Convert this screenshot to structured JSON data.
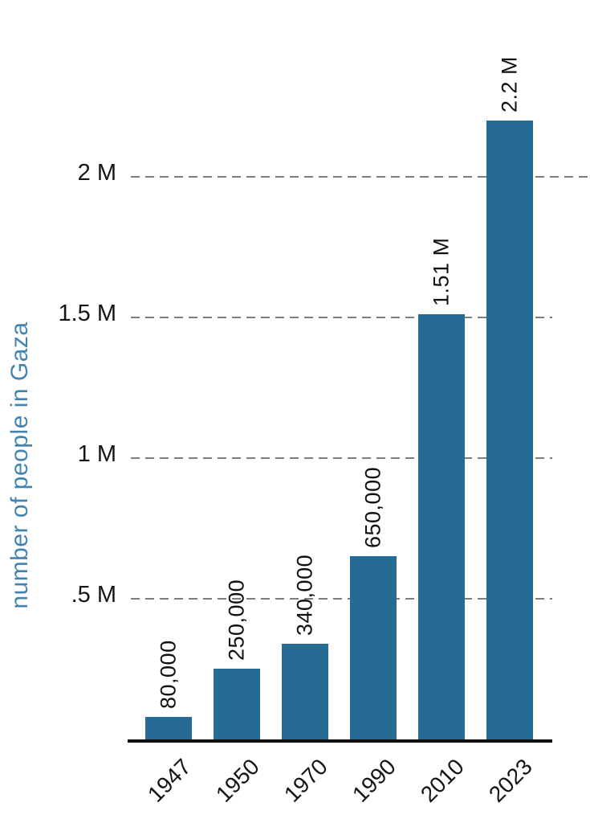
{
  "chart_data": {
    "type": "bar",
    "title": "",
    "xlabel": "",
    "ylabel": "number of people in Gaza",
    "categories": [
      "1947",
      "1950",
      "1970",
      "1990",
      "2010",
      "2023"
    ],
    "values": [
      80000,
      250000,
      340000,
      650000,
      1510000,
      2200000
    ],
    "value_labels": [
      "80,000",
      "250,000",
      "340,000",
      "650,000",
      "1.51 M",
      "2.2 M"
    ],
    "y_axis": {
      "ticks": [
        {
          "label": ".5 M",
          "value": 500000
        },
        {
          "label": "1 M",
          "value": 1000000
        },
        {
          "label": "1.5 M",
          "value": 1500000
        },
        {
          "label": "2 M",
          "value": 2000000
        }
      ],
      "ylim": [
        0,
        2300000
      ],
      "gridline_style": "dashed"
    },
    "legend": "none",
    "colors": {
      "bar": "#266B93",
      "y_title_text": "#4383AF",
      "grid": "#7D7D7D",
      "axis": "#111111",
      "tick_text": "#141414"
    }
  }
}
